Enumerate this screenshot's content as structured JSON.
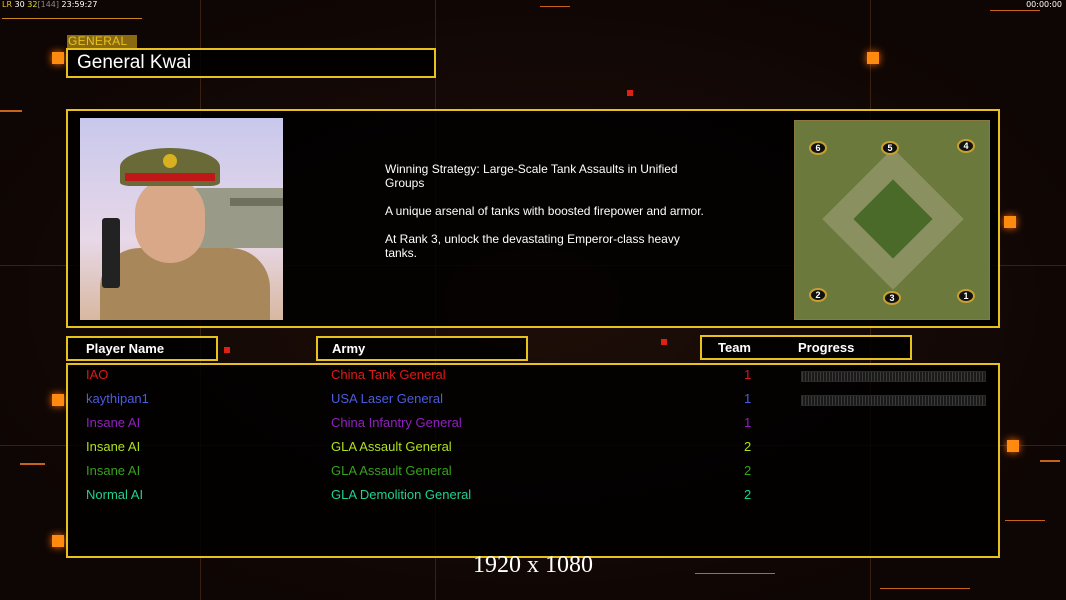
{
  "status_bar": {
    "fps_prefix": "LR",
    "fps1": "30",
    "fps2": "32",
    "bracket": "[144]",
    "clock": "23:59:27",
    "timer": "00:00:00"
  },
  "general": {
    "section_label": "GENERAL",
    "name": "General Kwai"
  },
  "description": [
    "Winning Strategy: Large-Scale Tank Assaults in Unified Groups",
    "A unique arsenal of tanks with boosted firepower and armor.",
    "At Rank 3, unlock the devastating Emperor-class heavy tanks."
  ],
  "minimap": {
    "start_positions": [
      "6",
      "5",
      "4",
      "2",
      "3",
      "1"
    ]
  },
  "headers": {
    "player_name": "Player Name",
    "army": "Army",
    "team": "Team",
    "progress": "Progress"
  },
  "players": [
    {
      "name": "IAO",
      "army": "China Tank General",
      "team": "1",
      "color": "#e01818",
      "progress": 0
    },
    {
      "name": "kaythipan1",
      "army": "USA Laser General",
      "team": "1",
      "color": "#4a5ce0",
      "progress": 0
    },
    {
      "name": "Insane AI",
      "army": "China Infantry General",
      "team": "1",
      "color": "#9020c0",
      "progress": null
    },
    {
      "name": "Insane AI",
      "army": "GLA Assault General",
      "team": "2",
      "color": "#b0e020",
      "progress": null
    },
    {
      "name": "Insane AI",
      "army": "GLA Assault General",
      "team": "2",
      "color": "#38a020",
      "progress": null
    },
    {
      "name": "Normal AI",
      "army": "GLA Demolition General",
      "team": "2",
      "color": "#20d090",
      "progress": null
    }
  ],
  "resolution": "1920 x 1080",
  "colors": {
    "accent": "#e8c21c",
    "background": "#120806"
  }
}
